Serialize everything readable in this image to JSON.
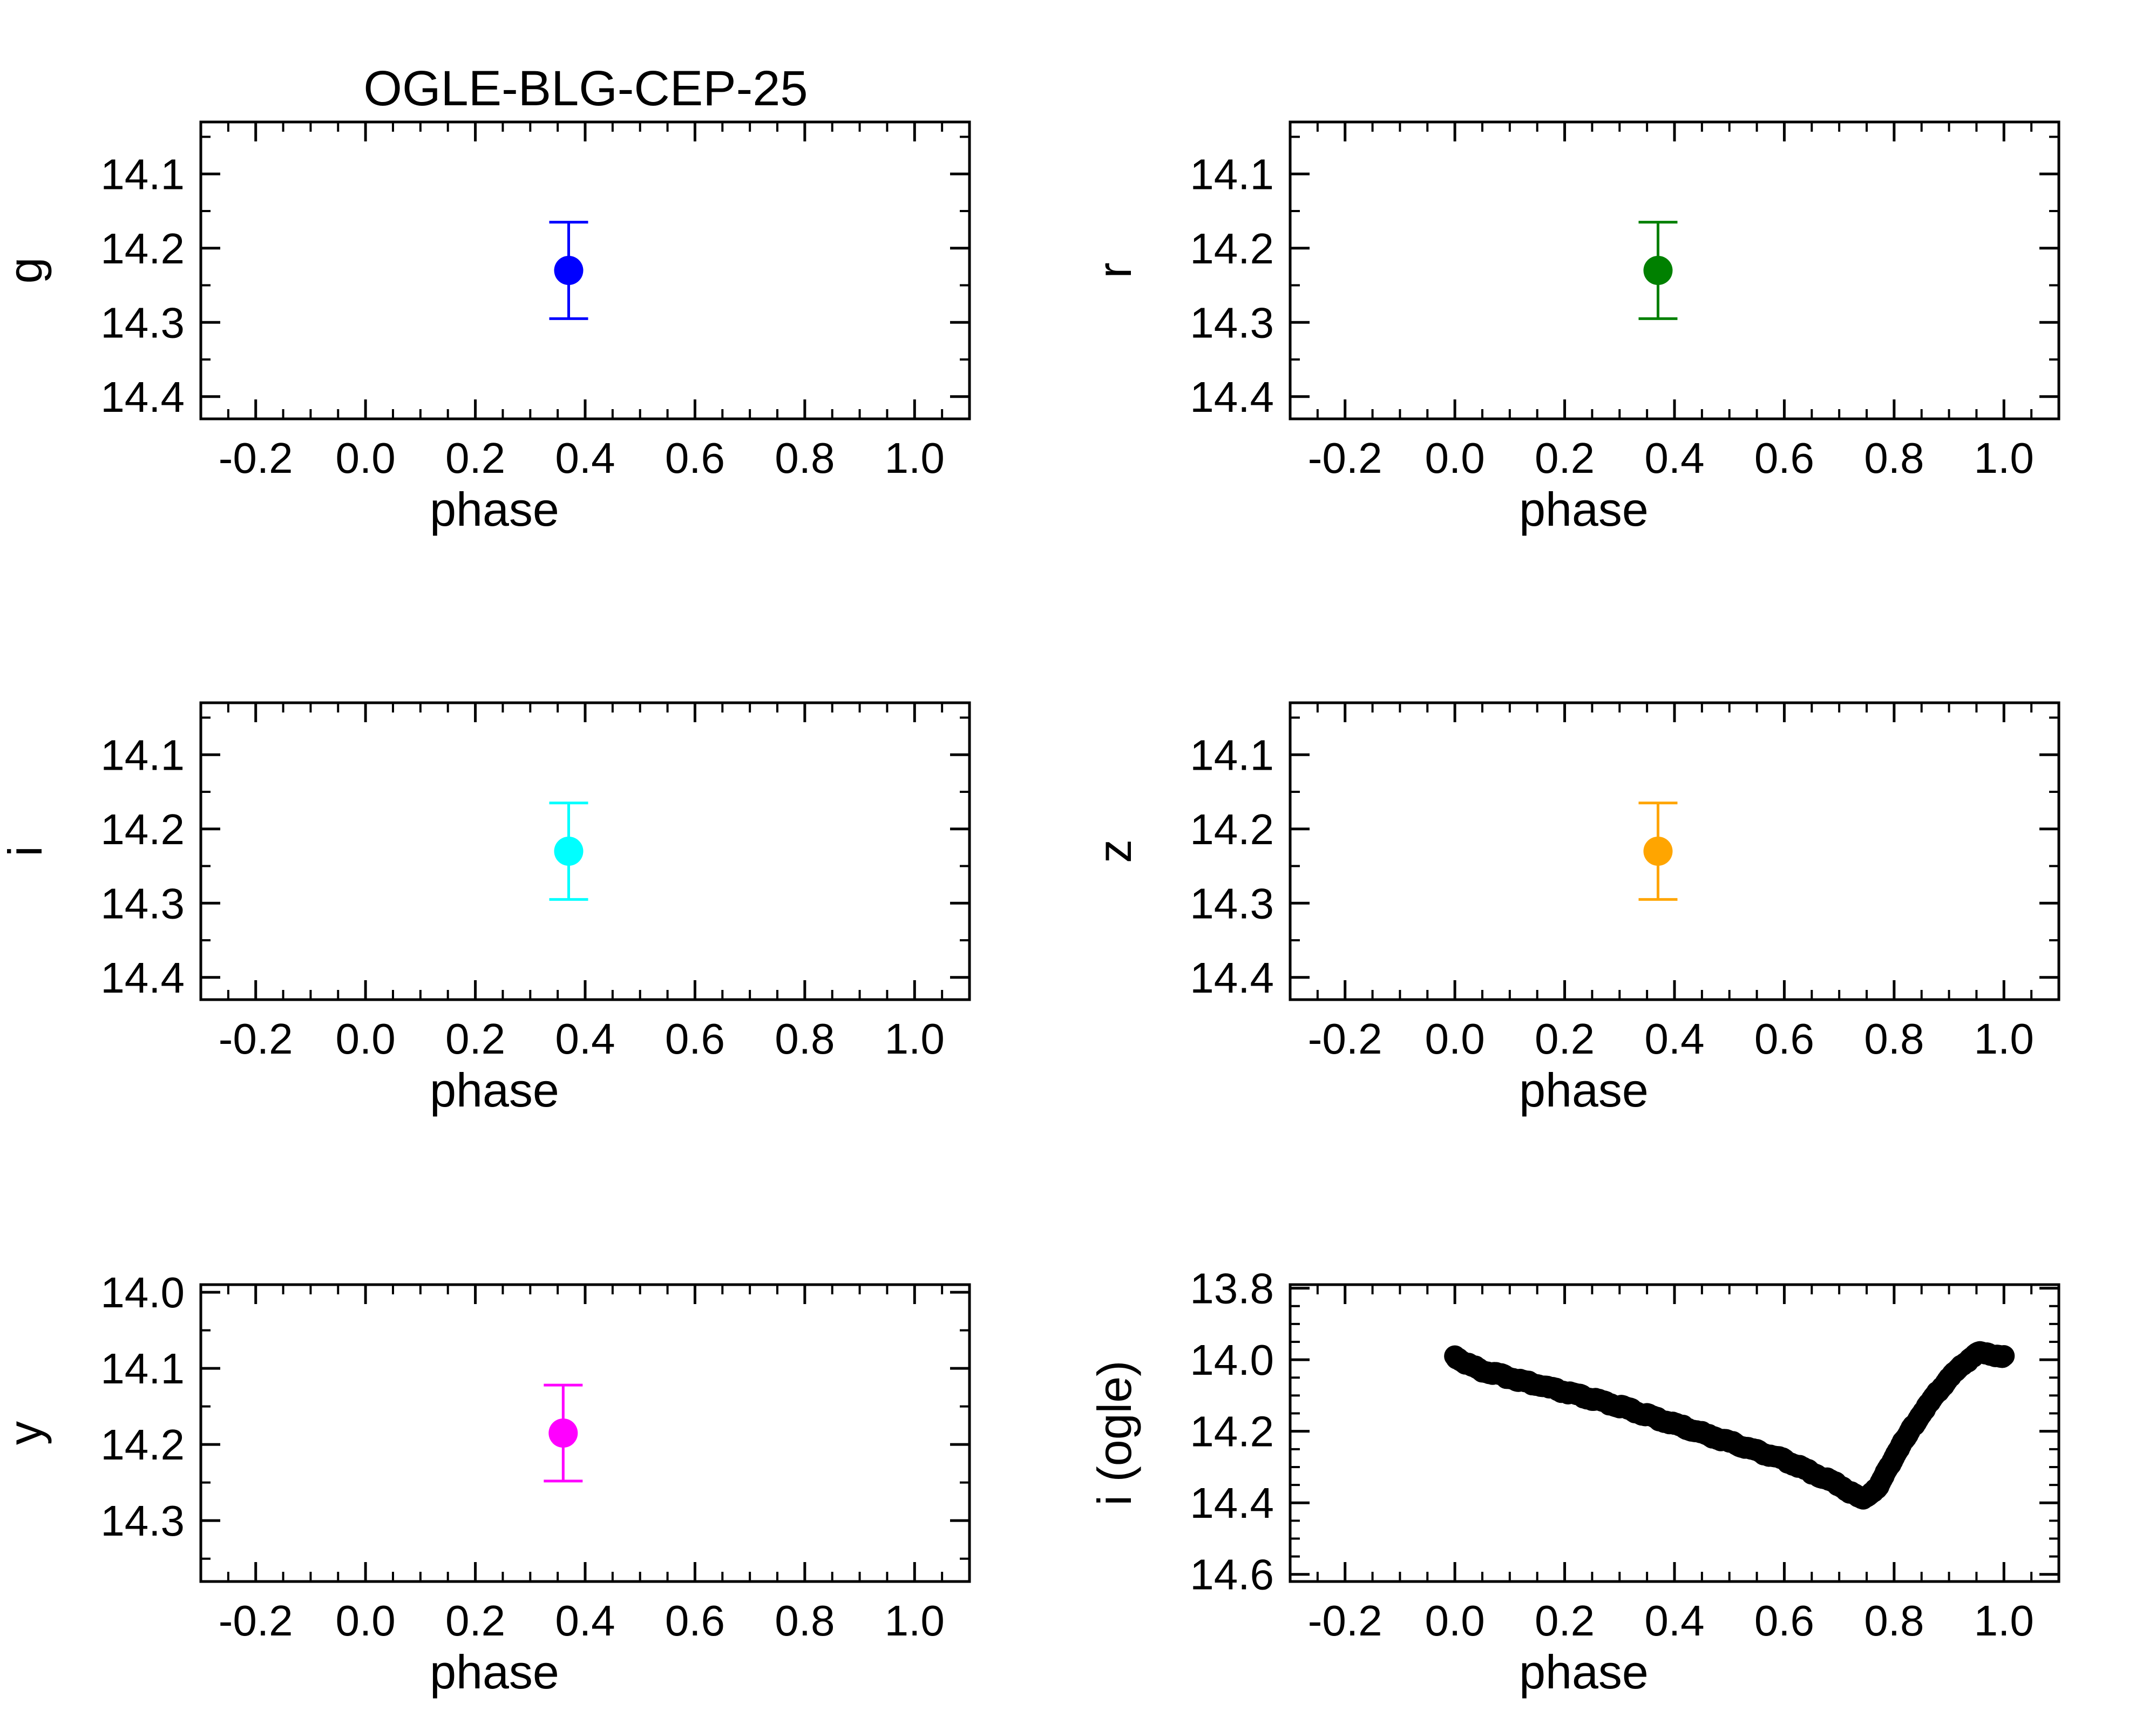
{
  "title": "OGLE-BLG-CEP-25",
  "chart_data": [
    {
      "type": "scatter",
      "panel": "g",
      "xlabel": "phase",
      "ylabel": "g",
      "xlim": [
        -0.3,
        1.1
      ],
      "ylim": [
        14.43,
        14.03
      ],
      "y_inverted": true,
      "xticks": [
        "-0.2",
        "0.0",
        "0.2",
        "0.4",
        "0.6",
        "0.8",
        "1.0"
      ],
      "yticks": [
        "14.1",
        "14.2",
        "14.3",
        "14.4"
      ],
      "color": "#0000ff",
      "points": [
        {
          "x": 0.37,
          "y": 14.23,
          "err": 0.065
        }
      ]
    },
    {
      "type": "scatter",
      "panel": "r",
      "xlabel": "phase",
      "ylabel": "r",
      "xlim": [
        -0.3,
        1.1
      ],
      "ylim": [
        14.43,
        14.03
      ],
      "y_inverted": true,
      "xticks": [
        "-0.2",
        "0.0",
        "0.2",
        "0.4",
        "0.6",
        "0.8",
        "1.0"
      ],
      "yticks": [
        "14.1",
        "14.2",
        "14.3",
        "14.4"
      ],
      "color": "#008000",
      "points": [
        {
          "x": 0.37,
          "y": 14.23,
          "err": 0.065
        }
      ]
    },
    {
      "type": "scatter",
      "panel": "i",
      "xlabel": "phase",
      "ylabel": "i",
      "xlim": [
        -0.3,
        1.1
      ],
      "ylim": [
        14.43,
        14.03
      ],
      "y_inverted": true,
      "xticks": [
        "-0.2",
        "0.0",
        "0.2",
        "0.4",
        "0.6",
        "0.8",
        "1.0"
      ],
      "yticks": [
        "14.1",
        "14.2",
        "14.3",
        "14.4"
      ],
      "color": "#00ffff",
      "points": [
        {
          "x": 0.37,
          "y": 14.23,
          "err": 0.065
        }
      ]
    },
    {
      "type": "scatter",
      "panel": "z",
      "xlabel": "phase",
      "ylabel": "z",
      "xlim": [
        -0.3,
        1.1
      ],
      "ylim": [
        14.43,
        14.03
      ],
      "y_inverted": true,
      "xticks": [
        "-0.2",
        "0.0",
        "0.2",
        "0.4",
        "0.6",
        "0.8",
        "1.0"
      ],
      "yticks": [
        "14.1",
        "14.2",
        "14.3",
        "14.4"
      ],
      "color": "#ffa500",
      "points": [
        {
          "x": 0.37,
          "y": 14.23,
          "err": 0.065
        }
      ]
    },
    {
      "type": "scatter",
      "panel": "y",
      "xlabel": "phase",
      "ylabel": "y",
      "xlim": [
        -0.3,
        1.1
      ],
      "ylim": [
        14.38,
        13.99
      ],
      "y_inverted": true,
      "xticks": [
        "-0.2",
        "0.0",
        "0.2",
        "0.4",
        "0.6",
        "0.8",
        "1.0"
      ],
      "yticks": [
        "14.0",
        "14.1",
        "14.2",
        "14.3"
      ],
      "color": "#ff00ff",
      "points": [
        {
          "x": 0.36,
          "y": 14.185,
          "err": 0.063
        }
      ]
    },
    {
      "type": "scatter",
      "panel": "i-ogle",
      "xlabel": "phase",
      "ylabel": "i (ogle)",
      "xlim": [
        -0.3,
        1.1
      ],
      "ylim": [
        14.62,
        13.79
      ],
      "y_inverted": true,
      "xticks": [
        "-0.2",
        "0.0",
        "0.2",
        "0.4",
        "0.6",
        "0.8",
        "1.0"
      ],
      "yticks": [
        "13.8",
        "14.0",
        "14.2",
        "14.4",
        "14.6"
      ],
      "color": "#000000",
      "light_curve": [
        [
          0.0,
          13.99
        ],
        [
          0.02,
          14.01
        ],
        [
          0.05,
          14.03
        ],
        [
          0.1,
          14.05
        ],
        [
          0.2,
          14.09
        ],
        [
          0.3,
          14.13
        ],
        [
          0.4,
          14.18
        ],
        [
          0.5,
          14.23
        ],
        [
          0.6,
          14.28
        ],
        [
          0.7,
          14.35
        ],
        [
          0.74,
          14.39
        ],
        [
          0.77,
          14.36
        ],
        [
          0.8,
          14.27
        ],
        [
          0.85,
          14.15
        ],
        [
          0.9,
          14.05
        ],
        [
          0.95,
          13.98
        ],
        [
          1.0,
          13.99
        ]
      ]
    }
  ]
}
